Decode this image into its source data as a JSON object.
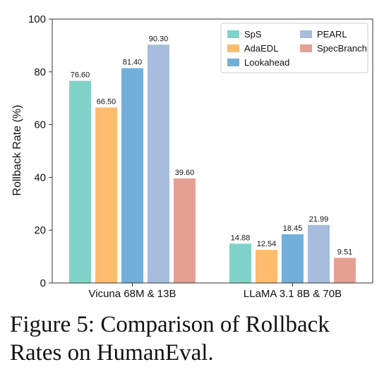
{
  "chart_data": {
    "type": "bar",
    "categories": [
      "Vicuna 68M & 13B",
      "LLaMA 3.1 8B & 70B"
    ],
    "series": [
      {
        "name": "SpS",
        "values": [
          76.6,
          14.88
        ],
        "labels": [
          "76.60",
          "14.88"
        ],
        "color": "#7fd3c8"
      },
      {
        "name": "AdaEDL",
        "values": [
          66.5,
          12.54
        ],
        "labels": [
          "66.50",
          "12.54"
        ],
        "color": "#ffbb6e"
      },
      {
        "name": "Lookahead",
        "values": [
          81.4,
          18.45
        ],
        "labels": [
          "81.40",
          "18.45"
        ],
        "color": "#72afd9"
      },
      {
        "name": "PEARL",
        "values": [
          90.3,
          21.99
        ],
        "labels": [
          "90.30",
          "21.99"
        ],
        "color": "#a6bddb"
      },
      {
        "name": "SpecBranch",
        "values": [
          39.6,
          9.51
        ],
        "labels": [
          "39.60",
          "9.51"
        ],
        "color": "#e6a093"
      }
    ],
    "title": "",
    "xlabel": "",
    "ylabel": "Rollback Rate (%)",
    "ylim": [
      0,
      100
    ],
    "yticks": [
      0,
      20,
      40,
      60,
      80,
      100
    ],
    "grid": false,
    "legend_position": "top-right",
    "legend_columns": 2
  },
  "caption": "Figure 5: Comparison of Rollback Rates on HumanEval."
}
